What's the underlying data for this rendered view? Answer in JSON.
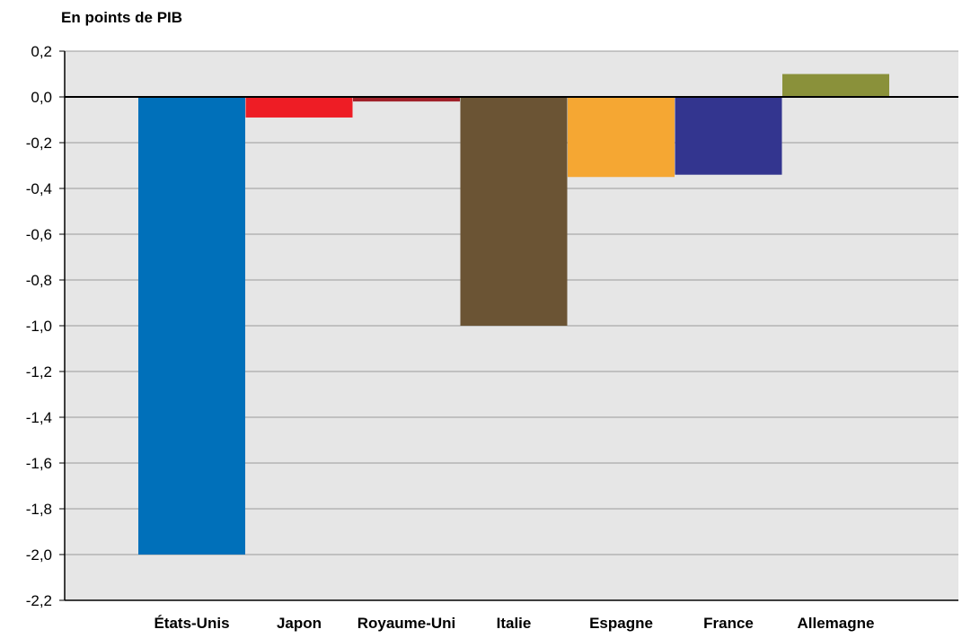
{
  "unit_label": "En points de PIB",
  "chart_data": {
    "type": "bar",
    "title": "",
    "xlabel": "",
    "ylabel": "En points de PIB",
    "ylim": [
      -2.2,
      0.2
    ],
    "y_ticks": [
      0.2,
      0.0,
      -0.2,
      -0.4,
      -0.6,
      -0.8,
      -1.0,
      -1.2,
      -1.4,
      -1.6,
      -1.8,
      -2.0,
      -2.2
    ],
    "y_tick_labels": [
      "0,2",
      "0,0",
      "-0,2",
      "-0,4",
      "-0,6",
      "-0,8",
      "-1,0",
      "-1,2",
      "-1,4",
      "-1,6",
      "-1,8",
      "-2,0",
      "-2,2"
    ],
    "categories": [
      "États-Unis",
      "Japon",
      "Royaume-Uni",
      "Italie",
      "Espagne",
      "France",
      "Allemagne"
    ],
    "values": [
      -2.0,
      -0.09,
      -0.02,
      -1.0,
      -0.35,
      -0.34,
      0.1
    ],
    "colors": [
      "#0070BA",
      "#EE1D25",
      "#A0222A",
      "#6B5434",
      "#F5A733",
      "#33358F",
      "#8A913A"
    ],
    "grid": true,
    "legend": "none",
    "plot_background": "#E6E6E6"
  }
}
